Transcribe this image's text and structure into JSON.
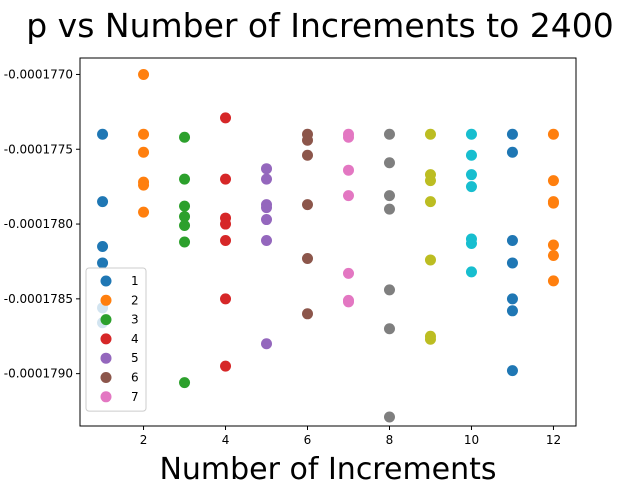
{
  "chart_data": {
    "type": "scatter",
    "title": "p  vs Number of Increments to 2400",
    "xlabel": "Number of Increments",
    "ylabel": "",
    "xlim": [
      0.45,
      12.55
    ],
    "ylim": [
      -0.00017935,
      -0.00017689
    ],
    "x_ticks": [
      2,
      4,
      6,
      8,
      10,
      12
    ],
    "x_tick_labels": [
      "2",
      "4",
      "6",
      "8",
      "10",
      "12"
    ],
    "y_ticks": [
      -0.000177,
      -0.0001775,
      -0.000178,
      -0.0001785,
      -0.000179
    ],
    "y_tick_labels": [
      "-0.0001770",
      "-0.0001775",
      "-0.0001780",
      "-0.0001785",
      "-0.0001790"
    ],
    "y_inverted": true,
    "legend_location": "lower-left",
    "series": [
      {
        "name": "1",
        "color": "#1f77b4",
        "points": [
          [
            1,
            -0.0001774
          ],
          [
            1,
            -0.00017785
          ],
          [
            1,
            -0.00017815
          ],
          [
            1,
            -0.00017826
          ],
          [
            1,
            -0.00017856
          ],
          [
            1,
            -0.00017866
          ],
          [
            11,
            -0.0001774
          ],
          [
            11,
            -0.00017752
          ],
          [
            11,
            -0.00017811
          ],
          [
            11,
            -0.00017826
          ],
          [
            11,
            -0.0001785
          ],
          [
            11,
            -0.00017858
          ],
          [
            11,
            -0.00017898
          ]
        ]
      },
      {
        "name": "2",
        "color": "#ff7f0e",
        "points": [
          [
            2,
            -0.000177
          ],
          [
            2,
            -0.0001774
          ],
          [
            2,
            -0.00017752
          ],
          [
            2,
            -0.00017772
          ],
          [
            2,
            -0.00017774
          ],
          [
            2,
            -0.00017792
          ],
          [
            12,
            -0.0001774
          ],
          [
            12,
            -0.00017771
          ],
          [
            12,
            -0.00017785
          ],
          [
            12,
            -0.00017786
          ],
          [
            12,
            -0.00017814
          ],
          [
            12,
            -0.00017821
          ],
          [
            12,
            -0.00017838
          ]
        ]
      },
      {
        "name": "3",
        "color": "#2ca02c",
        "points": [
          [
            3,
            -0.00017742
          ],
          [
            3,
            -0.0001777
          ],
          [
            3,
            -0.00017788
          ],
          [
            3,
            -0.00017795
          ],
          [
            3,
            -0.00017801
          ],
          [
            3,
            -0.00017812
          ],
          [
            3,
            -0.00017906
          ]
        ]
      },
      {
        "name": "4",
        "color": "#d62728",
        "points": [
          [
            4,
            -0.00017729
          ],
          [
            4,
            -0.0001777
          ],
          [
            4,
            -0.00017796
          ],
          [
            4,
            -0.000178
          ],
          [
            4,
            -0.00017811
          ],
          [
            4,
            -0.0001785
          ],
          [
            4,
            -0.00017895
          ]
        ]
      },
      {
        "name": "5",
        "color": "#9467bd",
        "points": [
          [
            5,
            -0.00017763
          ],
          [
            5,
            -0.0001777
          ],
          [
            5,
            -0.00017787
          ],
          [
            5,
            -0.00017789
          ],
          [
            5,
            -0.00017797
          ],
          [
            5,
            -0.00017811
          ],
          [
            5,
            -0.0001788
          ]
        ]
      },
      {
        "name": "6",
        "color": "#8c564b",
        "points": [
          [
            6,
            -0.0001774
          ],
          [
            6,
            -0.00017744
          ],
          [
            6,
            -0.00017754
          ],
          [
            6,
            -0.00017787
          ],
          [
            6,
            -0.00017823
          ],
          [
            6,
            -0.0001786
          ]
        ]
      },
      {
        "name": "7",
        "color": "#e377c2",
        "points": [
          [
            7,
            -0.0001774
          ],
          [
            7,
            -0.00017742
          ],
          [
            7,
            -0.00017764
          ],
          [
            7,
            -0.00017781
          ],
          [
            7,
            -0.00017833
          ],
          [
            7,
            -0.00017851
          ],
          [
            7,
            -0.00017852
          ]
        ]
      },
      {
        "name": "",
        "color": "#7f7f7f",
        "points": [
          [
            8,
            -0.0001774
          ],
          [
            8,
            -0.00017759
          ],
          [
            8,
            -0.00017781
          ],
          [
            8,
            -0.0001779
          ],
          [
            8,
            -0.00017844
          ],
          [
            8,
            -0.0001787
          ],
          [
            8,
            -0.00017929
          ]
        ]
      },
      {
        "name": "",
        "color": "#bcbd22",
        "points": [
          [
            9,
            -0.0001774
          ],
          [
            9,
            -0.00017767
          ],
          [
            9,
            -0.00017771
          ],
          [
            9,
            -0.00017785
          ],
          [
            9,
            -0.00017824
          ],
          [
            9,
            -0.00017875
          ],
          [
            9,
            -0.00017877
          ]
        ]
      },
      {
        "name": "",
        "color": "#17becf",
        "points": [
          [
            10,
            -0.0001774
          ],
          [
            10,
            -0.00017754
          ],
          [
            10,
            -0.00017767
          ],
          [
            10,
            -0.00017775
          ],
          [
            10,
            -0.0001781
          ],
          [
            10,
            -0.00017813
          ],
          [
            10,
            -0.00017832
          ]
        ]
      }
    ]
  }
}
